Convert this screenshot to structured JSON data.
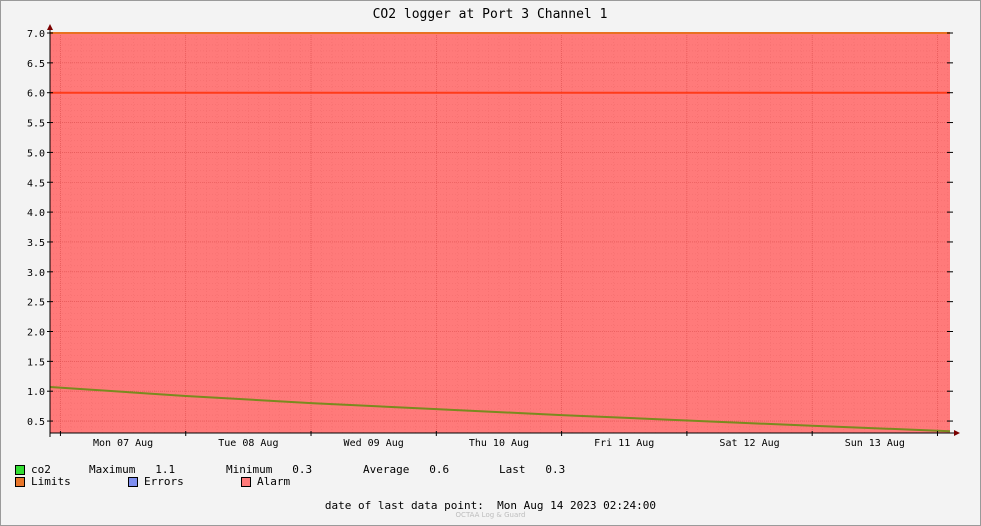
{
  "chart_data": {
    "type": "area",
    "title": "CO2 logger at Port 3 Channel 1",
    "xlabel": "",
    "ylabel": "",
    "ylim": [
      0.3,
      7.0
    ],
    "yticks": [
      "0.5",
      "1.0",
      "1.5",
      "2.0",
      "2.5",
      "3.0",
      "3.5",
      "4.0",
      "4.5",
      "5.0",
      "5.5",
      "6.0",
      "6.5",
      "7.0"
    ],
    "ytick_values": [
      0.5,
      1.0,
      1.5,
      2.0,
      2.5,
      3.0,
      3.5,
      4.0,
      4.5,
      5.0,
      5.5,
      6.0,
      6.5,
      7.0
    ],
    "x_range": [
      "2023-08-06T22:00",
      "2023-08-14T02:24"
    ],
    "x_ticks": [
      {
        "label": "Mon 07 Aug",
        "date": "2023-08-07T12:00"
      },
      {
        "label": "Tue 08 Aug",
        "date": "2023-08-08T12:00"
      },
      {
        "label": "Wed 09 Aug",
        "date": "2023-08-09T12:00"
      },
      {
        "label": "Thu 10 Aug",
        "date": "2023-08-10T12:00"
      },
      {
        "label": "Fri 11 Aug",
        "date": "2023-08-11T12:00"
      },
      {
        "label": "Sat 12 Aug",
        "date": "2023-08-12T12:00"
      },
      {
        "label": "Sun 13 Aug",
        "date": "2023-08-13T12:00"
      }
    ],
    "grid": true,
    "series": [
      {
        "name": "co2",
        "color": "#7a8a1e",
        "x": [
          "2023-08-06T22:00",
          "2023-08-08T00:00",
          "2023-08-09T00:00",
          "2023-08-10T00:00",
          "2023-08-11T00:00",
          "2023-08-12T00:00",
          "2023-08-13T00:00",
          "2023-08-14T02:24"
        ],
        "values": [
          1.07,
          0.92,
          0.8,
          0.7,
          0.6,
          0.51,
          0.42,
          0.33
        ]
      }
    ],
    "limits": [
      {
        "value": 7.0,
        "color": "#e87020"
      },
      {
        "value": 6.0,
        "color": "#ff3b1a"
      }
    ],
    "alarm_band": {
      "from": 0.3,
      "to": 7.0,
      "color": "#ff7a7a"
    }
  },
  "legend": {
    "rows": [
      [
        {
          "label": "co2",
          "color": "#33dd33"
        },
        {
          "text": "Maximum   1.1"
        },
        {
          "text": "Minimum   0.3"
        },
        {
          "text": "Average   0.6"
        },
        {
          "text": "Last   0.3"
        }
      ],
      [
        {
          "label": "Limits",
          "color": "#e8762a"
        },
        {
          "label": "Errors",
          "color": "#7f8ff0"
        },
        {
          "label": "Alarm",
          "color": "#ff7a7a"
        }
      ]
    ]
  },
  "footer": {
    "last_data_point": "date of last data point:  Mon Aug 14 2023 02:24:00",
    "watermark": "OCTAA Log & Guard"
  }
}
